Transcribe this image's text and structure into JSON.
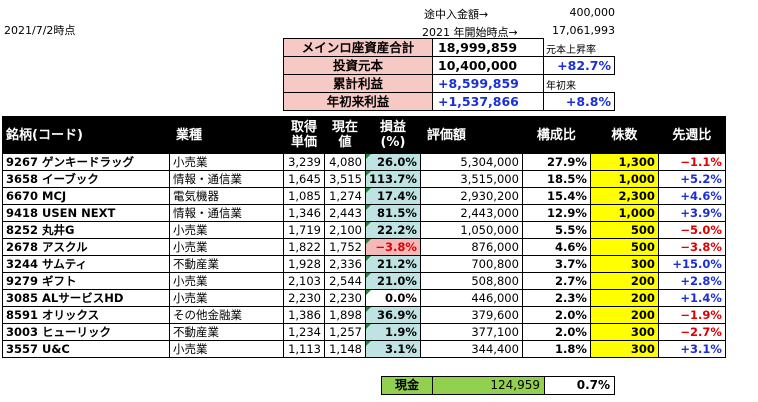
{
  "date_label": "2021/7/2時点",
  "top_info": [
    {
      "label": "途中入金額→",
      "value": "400,000"
    },
    {
      "label": "2021 年開始時点→",
      "value": "17,061,993"
    }
  ],
  "summary": {
    "total_assets": {
      "label": "メインロ座資産合計",
      "value": "18,999,859",
      "note": "元本上昇率"
    },
    "principal": {
      "label": "投資元本",
      "value": "10,400,000",
      "note": "+82.7%"
    },
    "cumulative": {
      "label": "累計利益",
      "value": "+8,599,859",
      "note": "年初来"
    },
    "ytd": {
      "label": "年初来利益",
      "value": "+1,537,866",
      "note": "+8.8%"
    }
  },
  "table": {
    "headers": {
      "name": "銘柄(コード)",
      "sector": "業種",
      "cost": "取得単価",
      "price": "現在値",
      "pl": "損益(%)",
      "value": "評価額",
      "ratio": "構成比",
      "shares": "株数",
      "bench": "先週比"
    },
    "rows": [
      {
        "name": "9267 ゲンキードラッグ",
        "sector": "小売業",
        "cost": "3,239",
        "price": "4,080",
        "pl": "26.0%",
        "value": "5,304,000",
        "ratio": "27.9%",
        "shares": "1,300",
        "bench": "−1.1%",
        "pl_style": "teal",
        "bench_color": "red",
        "yellow": true
      },
      {
        "name": "3658 イーブック",
        "sector": "情報・通信業",
        "cost": "1,645",
        "price": "3,515",
        "pl": "113.7%",
        "value": "3,515,000",
        "ratio": "18.5%",
        "shares": "1,000",
        "bench": "+5.2%",
        "pl_style": "teal",
        "bench_color": "blue",
        "yellow": true
      },
      {
        "name": "6670 MCJ",
        "sector": "電気機器",
        "cost": "1,085",
        "price": "1,274",
        "pl": "17.4%",
        "value": "2,930,200",
        "ratio": "15.4%",
        "shares": "2,300",
        "bench": "+4.6%",
        "pl_style": "teal",
        "bench_color": "blue",
        "yellow": true
      },
      {
        "name": "9418 USEN NEXT",
        "sector": "情報・通信業",
        "cost": "1,346",
        "price": "2,443",
        "pl": "81.5%",
        "value": "2,443,000",
        "ratio": "12.9%",
        "shares": "1,000",
        "bench": "+3.9%",
        "pl_style": "teal",
        "bench_color": "blue",
        "yellow": true
      },
      {
        "name": "8252 丸井G",
        "sector": "小売業",
        "cost": "1,719",
        "price": "2,100",
        "pl": "22.2%",
        "value": "1,050,000",
        "ratio": "5.5%",
        "shares": "500",
        "bench": "−5.0%",
        "pl_style": "teal",
        "bench_color": "red",
        "yellow": true
      },
      {
        "name": "2678 アスクル",
        "sector": "小売業",
        "cost": "1,822",
        "price": "1,752",
        "pl": "−3.8%",
        "value": "876,000",
        "ratio": "4.6%",
        "shares": "500",
        "bench": "−3.8%",
        "pl_style": "pink",
        "bench_color": "red",
        "yellow": true
      },
      {
        "name": "3244 サムティ",
        "sector": "不動産業",
        "cost": "1,928",
        "price": "2,336",
        "pl": "21.2%",
        "value": "700,800",
        "ratio": "3.7%",
        "shares": "300",
        "bench": "+15.0%",
        "pl_style": "teal",
        "bench_color": "blue",
        "yellow": true
      },
      {
        "name": "9279 ギフト",
        "sector": "小売業",
        "cost": "2,103",
        "price": "2,544",
        "pl": "21.0%",
        "value": "508,800",
        "ratio": "2.7%",
        "shares": "200",
        "bench": "+2.8%",
        "pl_style": "teal",
        "bench_color": "blue",
        "yellow": true
      },
      {
        "name": "3085 ALサービスHD",
        "sector": "小売業",
        "cost": "2,230",
        "price": "2,230",
        "pl": "0.0%",
        "value": "446,000",
        "ratio": "2.3%",
        "shares": "200",
        "bench": "+1.4%",
        "pl_style": "none",
        "bench_color": "blue",
        "yellow": true
      },
      {
        "name": "8591 オリックス",
        "sector": "その他金融業",
        "cost": "1,386",
        "price": "1,898",
        "pl": "36.9%",
        "value": "379,600",
        "ratio": "2.0%",
        "shares": "200",
        "bench": "−1.9%",
        "pl_style": "teal",
        "bench_color": "red",
        "yellow": true
      },
      {
        "name": "3003 ヒューリック",
        "sector": "不動産業",
        "cost": "1,234",
        "price": "1,257",
        "pl": "1.9%",
        "value": "377,100",
        "ratio": "2.0%",
        "shares": "300",
        "bench": "−2.7%",
        "pl_style": "teal",
        "bench_color": "red",
        "yellow": true
      },
      {
        "name": "3557 U&C",
        "sector": "小売業",
        "cost": "1,113",
        "price": "1,148",
        "pl": "3.1%",
        "value": "344,400",
        "ratio": "1.8%",
        "shares": "300",
        "bench": "+3.1%",
        "pl_style": "teal",
        "bench_color": "blue",
        "yellow": true
      }
    ]
  },
  "cash": {
    "label": "現金",
    "value": "124,959",
    "ratio": "0.7%"
  },
  "colors": {
    "header_bg": "#000000",
    "teal": "#bfe3e3",
    "pink": "#f5b8b8",
    "yellow": "#ffff00",
    "cash_green": "#92d050",
    "blue": "#1b2fd6",
    "red": "#e00000"
  }
}
